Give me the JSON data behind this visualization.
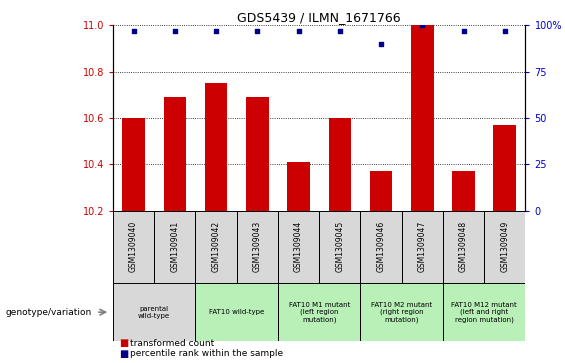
{
  "title": "GDS5439 / ILMN_1671766",
  "samples": [
    "GSM1309040",
    "GSM1309041",
    "GSM1309042",
    "GSM1309043",
    "GSM1309044",
    "GSM1309045",
    "GSM1309046",
    "GSM1309047",
    "GSM1309048",
    "GSM1309049"
  ],
  "bar_values": [
    10.6,
    10.69,
    10.75,
    10.69,
    10.41,
    10.6,
    10.37,
    11.0,
    10.37,
    10.57
  ],
  "dot_values": [
    97,
    97,
    97,
    97,
    97,
    97,
    90,
    100,
    97,
    97
  ],
  "ylim_left": [
    10.2,
    11.0
  ],
  "ylim_right": [
    0,
    100
  ],
  "yticks_left": [
    10.2,
    10.4,
    10.6,
    10.8,
    11.0
  ],
  "yticks_right": [
    0,
    25,
    50,
    75,
    100
  ],
  "bar_color": "#cc0000",
  "dot_color": "#00008b",
  "bar_width": 0.55,
  "groups": [
    {
      "label": "parental\nwild-type",
      "span": [
        0,
        2
      ],
      "color": "#d8d8d8"
    },
    {
      "label": "FAT10 wild-type",
      "span": [
        2,
        4
      ],
      "color": "#b8f0b8"
    },
    {
      "label": "FAT10 M1 mutant\n(left region\nmutation)",
      "span": [
        4,
        6
      ],
      "color": "#b8f0b8"
    },
    {
      "label": "FAT10 M2 mutant\n(right region\nmutation)",
      "span": [
        6,
        8
      ],
      "color": "#b8f0b8"
    },
    {
      "label": "FAT10 M12 mutant\n(left and right\nregion mutation)",
      "span": [
        8,
        10
      ],
      "color": "#b8f0b8"
    }
  ],
  "legend_items": [
    {
      "label": "transformed count",
      "color": "#cc0000"
    },
    {
      "label": "percentile rank within the sample",
      "color": "#00008b"
    }
  ],
  "genotype_label": "genotype/variation",
  "title_fontsize": 9,
  "left_axis_color": "#cc0000",
  "right_axis_color": "#0000cc",
  "sample_cell_color": "#d8d8d8",
  "right_ytick_labels": [
    "0",
    "25",
    "50",
    "75",
    "100%"
  ]
}
